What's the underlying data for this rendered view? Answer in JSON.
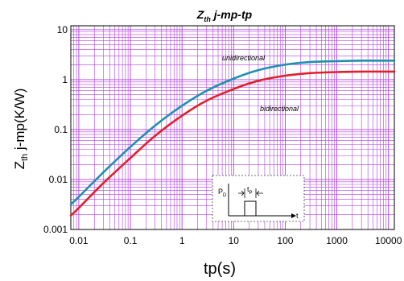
{
  "chart_data": {
    "type": "line",
    "title": "Z",
    "title_sub": "th",
    "title_rest": " j-mp-tp",
    "xlabel": "tp(s)",
    "ylabel_main": "Z",
    "ylabel_sub": "th",
    "ylabel_rest": " j-mp(K/W)",
    "x_scale": "log",
    "y_scale": "log",
    "xlim": [
      0.007,
      13000
    ],
    "ylim": [
      0.001,
      12
    ],
    "x_ticks": [
      0.01,
      0.1,
      1,
      10,
      100,
      1000,
      10000
    ],
    "x_tick_labels": [
      "0.01",
      "0.1",
      "1",
      "10",
      "100",
      "1000",
      "10000"
    ],
    "y_ticks": [
      0.001,
      0.01,
      0.1,
      1,
      10
    ],
    "y_tick_labels": [
      "0.001",
      "0.01",
      "0.1",
      "1",
      "10"
    ],
    "grid": true,
    "colors": {
      "grid": "#b040e0",
      "unidirectional": "#1f8fb0",
      "bidirectional": "#e0202a"
    },
    "series": [
      {
        "name": "unidirectional",
        "x": [
          0.007,
          0.01,
          0.03,
          0.1,
          0.3,
          1,
          3,
          10,
          30,
          100,
          300,
          1000,
          3000,
          10000,
          13000
        ],
        "y": [
          0.0032,
          0.0045,
          0.014,
          0.045,
          0.12,
          0.3,
          0.6,
          1.05,
          1.55,
          2.0,
          2.25,
          2.35,
          2.4,
          2.4,
          2.4
        ]
      },
      {
        "name": "bidirectional",
        "x": [
          0.007,
          0.01,
          0.03,
          0.1,
          0.3,
          1,
          3,
          10,
          30,
          100,
          300,
          1000,
          3000,
          10000,
          13000
        ],
        "y": [
          0.0019,
          0.0027,
          0.0085,
          0.027,
          0.075,
          0.19,
          0.38,
          0.65,
          0.95,
          1.2,
          1.35,
          1.42,
          1.45,
          1.45,
          1.45
        ]
      }
    ],
    "inset": {
      "pd_label": "P",
      "pd_sub": "D",
      "tp_label": "t",
      "tp_sub": "P",
      "t_label": "t"
    }
  }
}
